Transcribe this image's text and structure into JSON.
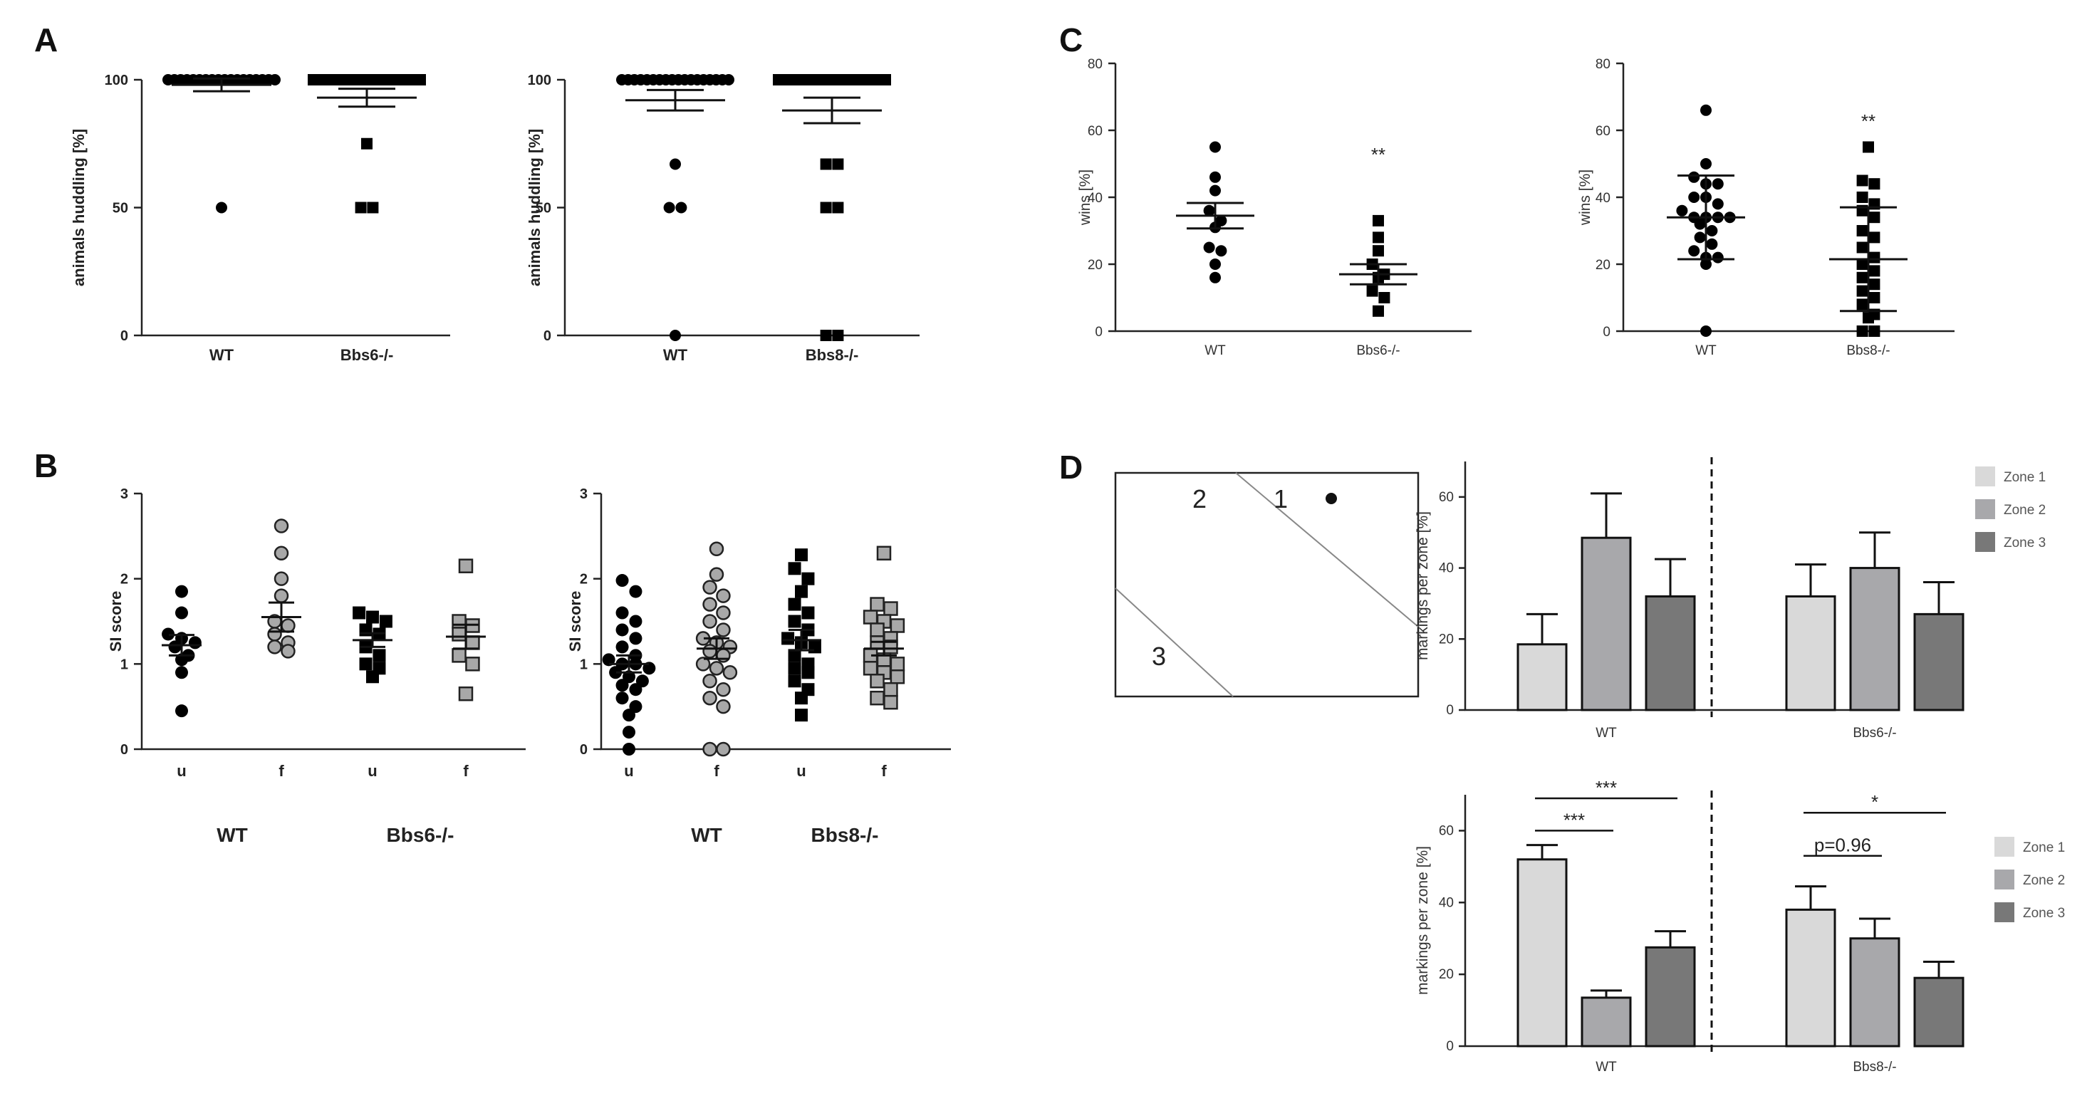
{
  "panels": {
    "A": "A",
    "B": "B",
    "C": "C",
    "D": "D"
  },
  "zone_diagram": {
    "labels": [
      "2",
      "1",
      "3"
    ]
  },
  "chart_data": [
    {
      "id": "A1",
      "panel": "A",
      "type": "scatter",
      "ylabel": "animals huddling [%]",
      "ylim": [
        0,
        100
      ],
      "yticks": [
        0,
        50,
        100
      ],
      "categories": [
        "WT",
        "Bbs6-/-"
      ],
      "series": [
        {
          "name": "WT",
          "marker": "circle-black",
          "values": [
            100,
            100,
            100,
            100,
            100,
            100,
            100,
            100,
            100,
            100,
            100,
            100,
            100,
            100,
            100,
            100,
            100,
            100,
            50
          ],
          "mean": 98,
          "sem": 2.5
        },
        {
          "name": "Bbs6-/-",
          "marker": "square-black",
          "values": [
            100,
            100,
            100,
            100,
            100,
            100,
            100,
            100,
            100,
            100,
            100,
            100,
            100,
            100,
            100,
            100,
            75,
            50,
            50
          ],
          "mean": 93,
          "sem": 3.5
        }
      ]
    },
    {
      "id": "A2",
      "panel": "A",
      "type": "scatter",
      "ylabel": "animals huddling [%]",
      "ylim": [
        0,
        100
      ],
      "yticks": [
        0,
        50,
        100
      ],
      "categories": [
        "WT",
        "Bbs8-/-"
      ],
      "series": [
        {
          "name": "WT",
          "marker": "circle-black",
          "values": [
            100,
            100,
            100,
            100,
            100,
            100,
            100,
            100,
            100,
            100,
            100,
            100,
            100,
            100,
            100,
            100,
            100,
            100,
            67,
            50,
            50,
            0
          ],
          "mean": 92,
          "sem": 4
        },
        {
          "name": "Bbs8-/-",
          "marker": "square-black",
          "values": [
            100,
            100,
            100,
            100,
            100,
            100,
            100,
            100,
            100,
            100,
            100,
            100,
            100,
            100,
            100,
            100,
            100,
            67,
            67,
            50,
            50,
            0,
            0
          ],
          "mean": 88,
          "sem": 5
        }
      ]
    },
    {
      "id": "B1",
      "panel": "B",
      "type": "scatter",
      "ylabel": "SI score",
      "ylim": [
        0,
        3
      ],
      "yticks": [
        0,
        1,
        2,
        3
      ],
      "categories": [
        "u",
        "f",
        "u",
        "f"
      ],
      "groups": [
        "WT",
        "Bbs6-/-"
      ],
      "series": [
        {
          "name": "WT u",
          "marker": "circle-black",
          "values": [
            1.85,
            1.6,
            1.35,
            1.3,
            1.25,
            1.2,
            1.1,
            1.05,
            0.9,
            0.45
          ],
          "mean": 1.22,
          "sem": 0.12
        },
        {
          "name": "WT f",
          "marker": "circle-grey",
          "values": [
            2.62,
            2.3,
            2.0,
            1.8,
            1.5,
            1.45,
            1.35,
            1.25,
            1.2,
            1.15
          ],
          "mean": 1.55,
          "sem": 0.17
        },
        {
          "name": "Bbs6-/- u",
          "marker": "square-black",
          "values": [
            1.6,
            1.55,
            1.5,
            1.4,
            1.35,
            1.2,
            1.1,
            1.0,
            0.95,
            0.85
          ],
          "mean": 1.28,
          "sem": 0.08
        },
        {
          "name": "Bbs6-/- f",
          "marker": "square-grey",
          "values": [
            2.15,
            1.5,
            1.45,
            1.35,
            1.25,
            1.1,
            1.0,
            0.65
          ],
          "mean": 1.32,
          "sem": 0.14
        }
      ]
    },
    {
      "id": "B2",
      "panel": "B",
      "type": "scatter",
      "ylabel": "SI score",
      "ylim": [
        0,
        3
      ],
      "yticks": [
        0,
        1,
        2,
        3
      ],
      "categories": [
        "u",
        "f",
        "u",
        "f"
      ],
      "groups": [
        "WT",
        "Bbs8-/-"
      ],
      "series": [
        {
          "name": "WT u",
          "marker": "circle-black",
          "values": [
            1.98,
            1.85,
            1.6,
            1.5,
            1.4,
            1.3,
            1.2,
            1.1,
            1.05,
            1.0,
            1.0,
            0.95,
            0.9,
            0.85,
            0.8,
            0.75,
            0.7,
            0.6,
            0.5,
            0.4,
            0.2,
            0.0
          ],
          "mean": 1.0,
          "sem": 0.1
        },
        {
          "name": "WT f",
          "marker": "circle-grey",
          "values": [
            2.35,
            2.05,
            1.9,
            1.8,
            1.7,
            1.6,
            1.5,
            1.4,
            1.3,
            1.25,
            1.2,
            1.15,
            1.1,
            1.0,
            0.95,
            0.9,
            0.8,
            0.7,
            0.6,
            0.5,
            0.0,
            0.0
          ],
          "mean": 1.18,
          "sem": 0.12
        },
        {
          "name": "Bbs8-/- u",
          "marker": "square-black",
          "values": [
            2.28,
            2.12,
            2.0,
            1.85,
            1.7,
            1.6,
            1.5,
            1.4,
            1.3,
            1.25,
            1.2,
            1.1,
            1.0,
            0.95,
            0.9,
            0.8,
            0.7,
            0.6,
            0.4
          ],
          "mean": 1.28,
          "sem": 0.12
        },
        {
          "name": "Bbs8-/- f",
          "marker": "square-grey",
          "values": [
            2.3,
            1.7,
            1.65,
            1.55,
            1.5,
            1.45,
            1.4,
            1.3,
            1.25,
            1.2,
            1.1,
            1.05,
            1.0,
            0.95,
            0.9,
            0.85,
            0.8,
            0.7,
            0.6,
            0.55
          ],
          "mean": 1.18,
          "sem": 0.08
        }
      ]
    },
    {
      "id": "C1",
      "panel": "C",
      "type": "scatter",
      "ylabel": "wins [%]",
      "ylim": [
        0,
        80
      ],
      "yticks": [
        0,
        20,
        40,
        60,
        80
      ],
      "categories": [
        "WT",
        "Bbs6-/-"
      ],
      "annotations": [
        {
          "text": "**",
          "category": "Bbs6-/-",
          "y": 53
        }
      ],
      "series": [
        {
          "name": "WT",
          "marker": "circle-black",
          "values": [
            55,
            46,
            42,
            36,
            33,
            31,
            25,
            24,
            20,
            16
          ],
          "mean": 34.5,
          "sem": 3.8
        },
        {
          "name": "Bbs6-/-",
          "marker": "square-black",
          "values": [
            33,
            28,
            24,
            20,
            17,
            16,
            12,
            10,
            6
          ],
          "mean": 17,
          "sem": 3
        }
      ]
    },
    {
      "id": "C2",
      "panel": "C",
      "type": "scatter",
      "ylabel": "wins [%]",
      "ylim": [
        0,
        80
      ],
      "yticks": [
        0,
        20,
        40,
        60,
        80
      ],
      "categories": [
        "WT",
        "Bbs8-/-"
      ],
      "annotations": [
        {
          "text": "**",
          "category": "Bbs8-/-",
          "y": 63
        }
      ],
      "series": [
        {
          "name": "WT",
          "marker": "circle-black",
          "values": [
            66,
            50,
            46,
            44,
            44,
            40,
            40,
            38,
            36,
            34,
            34,
            34,
            34,
            32,
            30,
            28,
            26,
            24,
            22,
            22,
            20,
            0
          ],
          "mean": 34,
          "sem": 12.5
        },
        {
          "name": "Bbs8-/-",
          "marker": "square-black",
          "values": [
            55,
            45,
            44,
            40,
            38,
            36,
            34,
            30,
            28,
            25,
            22,
            20,
            18,
            16,
            14,
            12,
            10,
            8,
            5,
            4,
            0,
            0
          ],
          "mean": 21.5,
          "sem": 15.5
        }
      ]
    },
    {
      "id": "D1",
      "panel": "D",
      "type": "bar",
      "ylabel": "markings per zone [%]",
      "ylim": [
        0,
        70
      ],
      "yticks": [
        0,
        20,
        40,
        60
      ],
      "groups": [
        "WT",
        "Bbs6-/-"
      ],
      "legend": [
        "Zone 1",
        "Zone 2",
        "Zone 3"
      ],
      "colors": [
        "#d9d9d9",
        "#a8a8ab",
        "#787878"
      ],
      "series": [
        {
          "name": "Zone 1",
          "values": [
            18.5,
            32
          ],
          "err": [
            8.5,
            9
          ]
        },
        {
          "name": "Zone 2",
          "values": [
            48.5,
            40
          ],
          "err": [
            12.5,
            10
          ]
        },
        {
          "name": "Zone 3",
          "values": [
            32,
            27
          ],
          "err": [
            10.5,
            9
          ]
        }
      ]
    },
    {
      "id": "D2",
      "panel": "D",
      "type": "bar",
      "ylabel": "markings per zone [%]",
      "ylim": [
        0,
        70
      ],
      "yticks": [
        0,
        20,
        40,
        60
      ],
      "groups": [
        "WT",
        "Bbs8-/-"
      ],
      "legend": [
        "Zone 1",
        "Zone 2",
        "Zone 3"
      ],
      "colors": [
        "#d9d9d9",
        "#a8a8ab",
        "#787878"
      ],
      "series": [
        {
          "name": "Zone 1",
          "values": [
            52,
            38
          ],
          "err": [
            4,
            6.5
          ]
        },
        {
          "name": "Zone 2",
          "values": [
            13.5,
            30
          ],
          "err": [
            2,
            5.5
          ]
        },
        {
          "name": "Zone 3",
          "values": [
            27.5,
            19
          ],
          "err": [
            4.5,
            4.5
          ]
        }
      ],
      "significance": [
        {
          "group": "WT",
          "from": "Zone 1",
          "to": "Zone 2",
          "text": "***",
          "y": 60
        },
        {
          "group": "WT",
          "from": "Zone 1",
          "to": "Zone 3",
          "text": "***",
          "y": 69
        },
        {
          "group": "Bbs8-/-",
          "from": "Zone 1",
          "to": "Zone 2",
          "text": "p=0.96",
          "y": 53
        },
        {
          "group": "Bbs8-/-",
          "from": "Zone 1",
          "to": "Zone 3",
          "text": "*",
          "y": 65
        }
      ]
    }
  ]
}
